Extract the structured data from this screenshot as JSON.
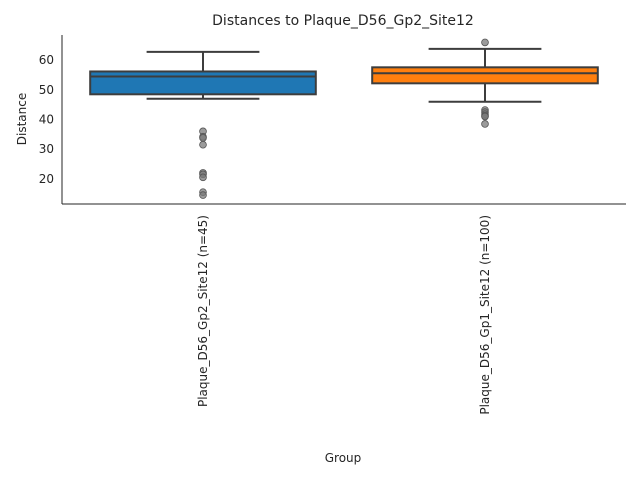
{
  "chart_data": {
    "type": "box",
    "title": "Distances to Plaque_D56_Gp2_Site12",
    "xlabel": "Group",
    "ylabel": "Distance",
    "ylim": [
      11.5,
      68.5
    ],
    "yticks": [
      20,
      30,
      40,
      50,
      60
    ],
    "categories": [
      "Plaque_D56_Gp2_Site12 (n=45)",
      "Plaque_D56_Gp1_Site12 (n=100)"
    ],
    "series": [
      {
        "color": "#1f77b4",
        "whisker_low": 47,
        "q1": 48.5,
        "median": 54.5,
        "q3": 56.2,
        "whisker_high": 62.8,
        "outliers": [
          36,
          34.2,
          33.8,
          31.5,
          22,
          21.5,
          20.5,
          15.5,
          14.5
        ]
      },
      {
        "color": "#ff7f0e",
        "whisker_low": 46,
        "q1": 52.2,
        "median": 55.6,
        "q3": 57.6,
        "whisker_high": 63.8,
        "outliers": [
          66,
          43.2,
          42.5,
          41.8,
          41.3,
          41,
          38.5
        ]
      }
    ],
    "grid": false,
    "legend": "none"
  }
}
